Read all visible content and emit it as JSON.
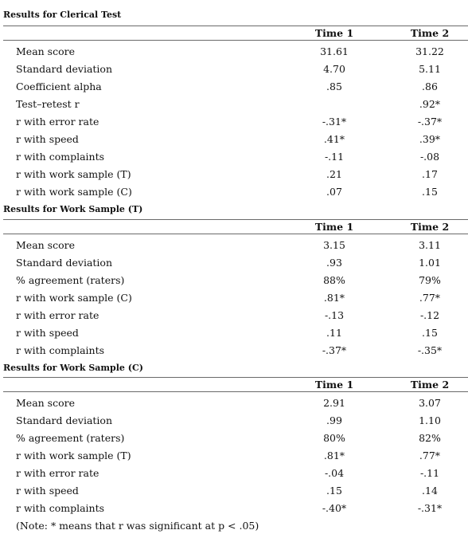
{
  "sections": [
    {
      "title": "Results for Clerical Test",
      "col1": "Time 1",
      "col2": "Time 2",
      "rows": [
        {
          "label": "Mean score",
          "t1": "31.61",
          "t2": "31.22"
        },
        {
          "label": "Standard deviation",
          "t1": "4.70",
          "t2": "5.11"
        },
        {
          "label": "Coefficient alpha",
          "t1": ".85",
          "t2": ".86"
        },
        {
          "label": "Test–retest r",
          "t1": "",
          "t2": ".92*"
        },
        {
          "label": "r with error rate",
          "t1": "-.31*",
          "t2": "-.37*"
        },
        {
          "label": "r with speed",
          "t1": ".41*",
          "t2": ".39*"
        },
        {
          "label": "r with complaints",
          "t1": "-.11",
          "t2": "-.08"
        },
        {
          "label": "r with work sample (T)",
          "t1": ".21",
          "t2": ".17"
        },
        {
          "label": "r with work sample (C)",
          "t1": ".07",
          "t2": ".15"
        }
      ]
    },
    {
      "title": "Results for Work Sample (T)",
      "col1": "Time 1",
      "col2": "Time 2",
      "rows": [
        {
          "label": "Mean score",
          "t1": "3.15",
          "t2": "3.11"
        },
        {
          "label": "Standard deviation",
          "t1": ".93",
          "t2": "1.01"
        },
        {
          "label": "% agreement (raters)",
          "t1": "88%",
          "t2": "79%"
        },
        {
          "label": "r with work sample (C)",
          "t1": ".81*",
          "t2": ".77*"
        },
        {
          "label": "r with error rate",
          "t1": "-.13",
          "t2": "-.12"
        },
        {
          "label": "r with speed",
          "t1": ".11",
          "t2": ".15"
        },
        {
          "label": "r with complaints",
          "t1": "-.37*",
          "t2": "-.35*"
        }
      ]
    },
    {
      "title": "Results for Work Sample (C)",
      "col1": "Time 1",
      "col2": "Time 2",
      "rows": [
        {
          "label": "Mean score",
          "t1": "2.91",
          "t2": "3.07"
        },
        {
          "label": "Standard deviation",
          "t1": ".99",
          "t2": "1.10"
        },
        {
          "label": "% agreement (raters)",
          "t1": "80%",
          "t2": "82%"
        },
        {
          "label": "r with work sample (T)",
          "t1": ".81*",
          "t2": ".77*"
        },
        {
          "label": "r with error rate",
          "t1": "-.04",
          "t2": "-.11"
        },
        {
          "label": "r with speed",
          "t1": ".15",
          "t2": ".14"
        },
        {
          "label": "r with complaints",
          "t1": "-.40*",
          "t2": "-.31*"
        }
      ]
    }
  ],
  "note": "(Note: * means that r was significant at p < .05)"
}
